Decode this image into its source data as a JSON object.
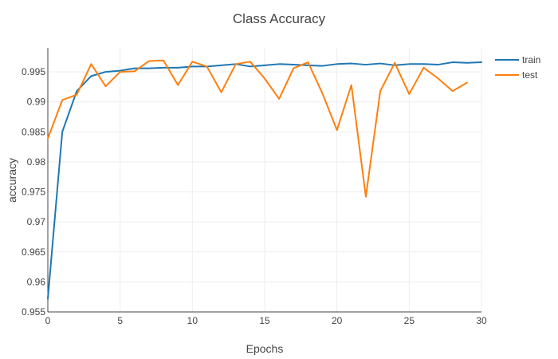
{
  "chart_data": {
    "type": "line",
    "title": "Class Accuracy",
    "xlabel": "Epochs",
    "ylabel": "accuracy",
    "xlim": [
      0,
      30
    ],
    "ylim": [
      0.955,
      0.999
    ],
    "x_ticks": [
      0,
      5,
      10,
      15,
      20,
      25,
      30
    ],
    "x_tick_labels": [
      "0",
      "5",
      "10",
      "15",
      "20",
      "25",
      "30"
    ],
    "y_ticks": [
      0.955,
      0.96,
      0.965,
      0.97,
      0.975,
      0.98,
      0.985,
      0.99,
      0.995
    ],
    "y_tick_labels": [
      "0.955",
      "0.96",
      "0.965",
      "0.97",
      "0.975",
      "0.98",
      "0.985",
      "0.99",
      "0.995"
    ],
    "grid": true,
    "legend_position": "top-right",
    "series": [
      {
        "name": "train",
        "color": "#1f77b4",
        "x": [
          0,
          1,
          2,
          3,
          4,
          5,
          6,
          7,
          8,
          9,
          10,
          11,
          12,
          13,
          14,
          15,
          16,
          17,
          18,
          19,
          20,
          21,
          22,
          23,
          24,
          25,
          26,
          27,
          28,
          29,
          30
        ],
        "values": [
          0.9572,
          0.985,
          0.9918,
          0.9943,
          0.995,
          0.9952,
          0.9956,
          0.9956,
          0.9957,
          0.9957,
          0.9959,
          0.9959,
          0.9961,
          0.9963,
          0.9959,
          0.9961,
          0.9963,
          0.9962,
          0.9961,
          0.996,
          0.9963,
          0.9964,
          0.9962,
          0.9964,
          0.9961,
          0.9963,
          0.9963,
          0.9962,
          0.9966,
          0.9965,
          0.9966
        ]
      },
      {
        "name": "test",
        "color": "#ff7f0e",
        "x": [
          0,
          1,
          2,
          3,
          4,
          5,
          6,
          7,
          8,
          9,
          10,
          11,
          12,
          13,
          14,
          15,
          16,
          17,
          18,
          19,
          20,
          21,
          22,
          23,
          24,
          25,
          26,
          27,
          28,
          29
        ],
        "values": [
          0.9839,
          0.9903,
          0.9912,
          0.9963,
          0.9926,
          0.995,
          0.9951,
          0.9968,
          0.9969,
          0.9928,
          0.9967,
          0.9959,
          0.9916,
          0.9963,
          0.9967,
          0.9939,
          0.9905,
          0.9956,
          0.9966,
          0.9914,
          0.9853,
          0.9928,
          0.9742,
          0.9918,
          0.9965,
          0.9913,
          0.9957,
          0.9939,
          0.9918,
          0.9932
        ]
      }
    ]
  }
}
